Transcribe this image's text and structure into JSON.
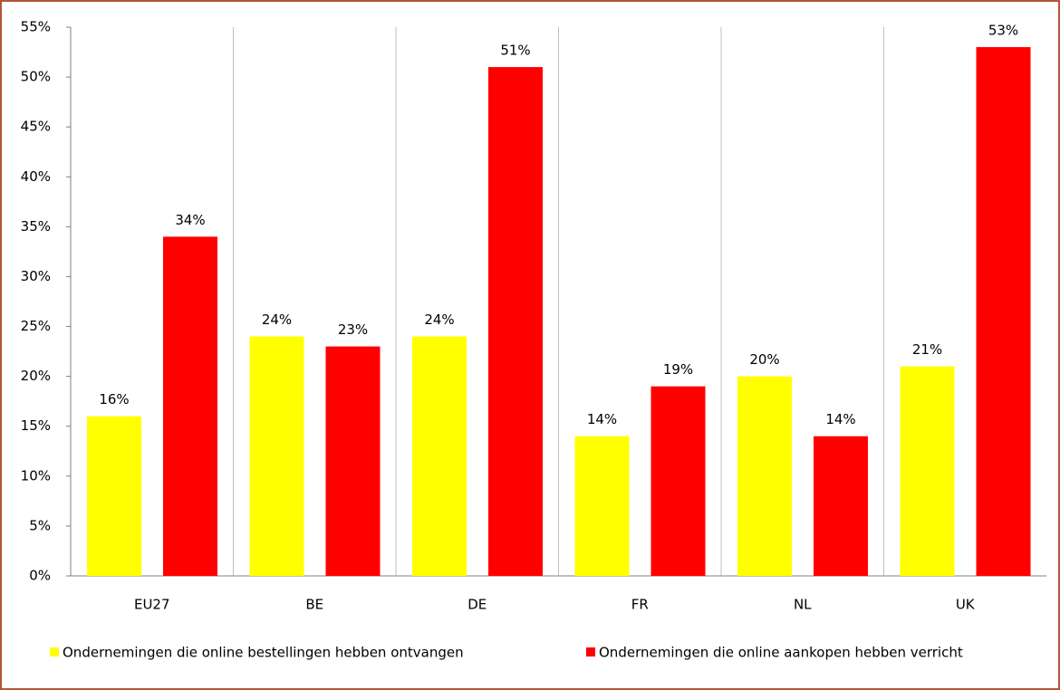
{
  "chart_data": {
    "type": "bar",
    "categories": [
      "EU27",
      "BE",
      "DE",
      "FR",
      "NL",
      "UK"
    ],
    "series": [
      {
        "name": "Ondernemingen die online bestellingen hebben ontvangen",
        "color": "#ffff00",
        "values": [
          16,
          24,
          24,
          14,
          20,
          21
        ],
        "value_labels": [
          "16%",
          "24%",
          "24%",
          "14%",
          "20%",
          "21%"
        ]
      },
      {
        "name": "Ondernemingen die online aankopen hebben verricht",
        "color": "#ff0000",
        "values": [
          34,
          23,
          51,
          19,
          14,
          53
        ],
        "value_labels": [
          "34%",
          "23%",
          "51%",
          "19%",
          "14%",
          "53%"
        ]
      }
    ],
    "ylim": [
      0,
      55
    ],
    "yticks": [
      {
        "value": 0,
        "label": "0%"
      },
      {
        "value": 5,
        "label": "5%"
      },
      {
        "value": 10,
        "label": "10%"
      },
      {
        "value": 15,
        "label": "15%"
      },
      {
        "value": 20,
        "label": "20%"
      },
      {
        "value": 25,
        "label": "25%"
      },
      {
        "value": 30,
        "label": "30%"
      },
      {
        "value": 35,
        "label": "35%"
      },
      {
        "value": 40,
        "label": "40%"
      },
      {
        "value": 45,
        "label": "45%"
      },
      {
        "value": 50,
        "label": "50%"
      },
      {
        "value": 55,
        "label": "55%"
      }
    ],
    "legend": "bottom"
  }
}
